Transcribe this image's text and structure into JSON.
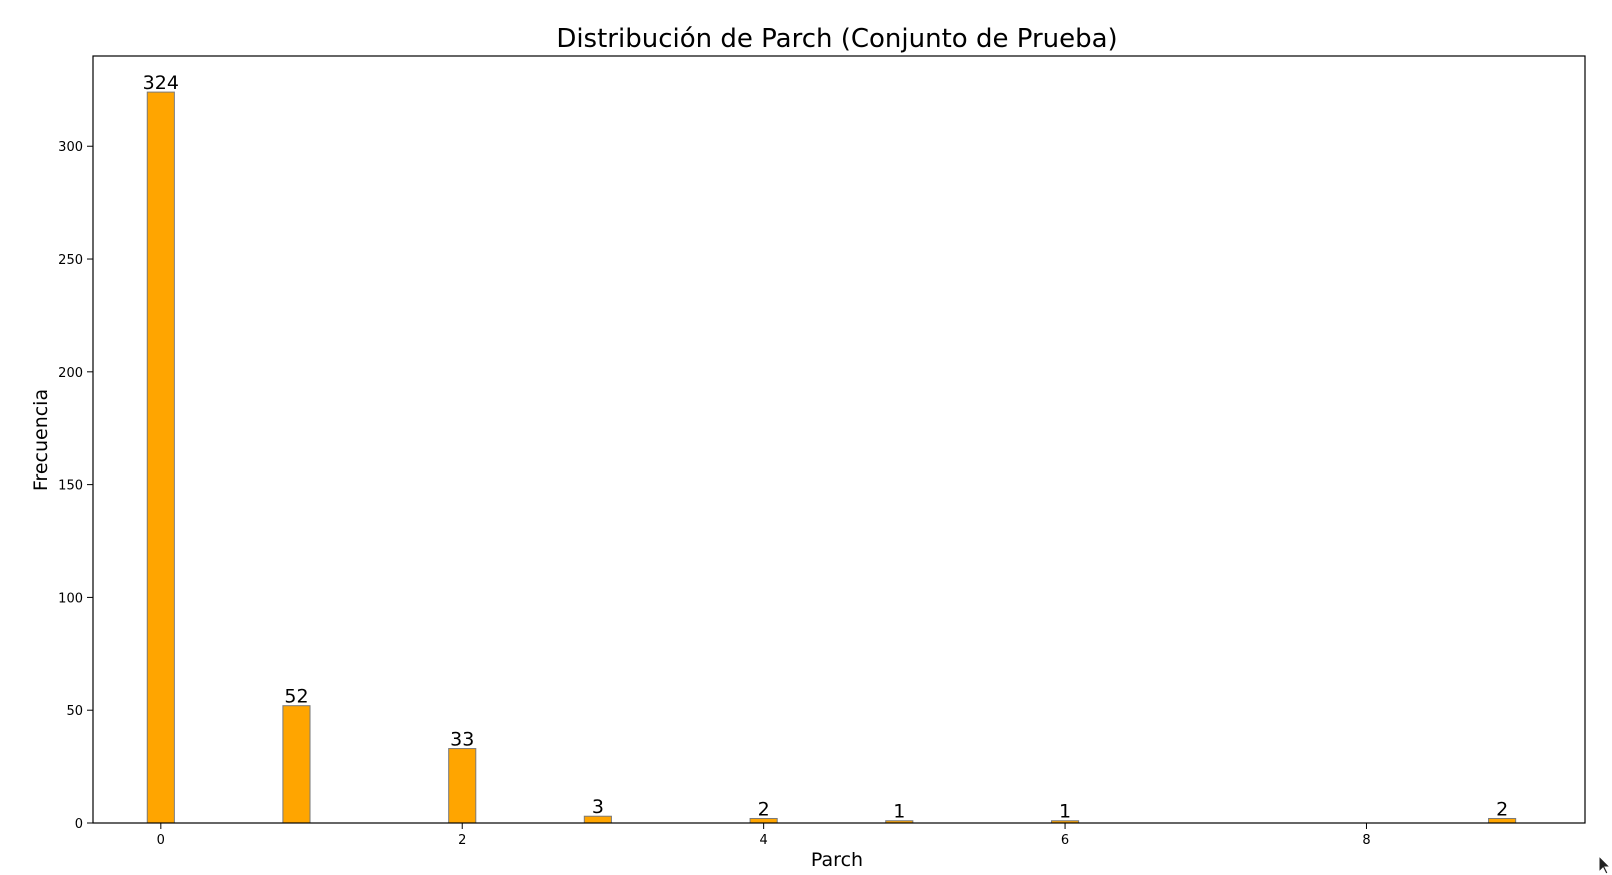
{
  "chart_data": {
    "type": "bar",
    "title": "Distribución de Parch (Conjunto de Prueba)",
    "xlabel": "Parch",
    "ylabel": "Frecuencia",
    "x": [
      0,
      0.9,
      2,
      2.9,
      4,
      4.9,
      6,
      8.9
    ],
    "values": [
      324,
      52,
      33,
      3,
      2,
      1,
      1,
      2
    ],
    "data_labels": [
      "324",
      "52",
      "33",
      "3",
      "2",
      "1",
      "1",
      "2"
    ],
    "bar_width": 0.18,
    "xlim": [
      -0.45,
      9.45
    ],
    "ylim": [
      0,
      340
    ],
    "xticks": [
      0,
      2,
      4,
      6,
      8
    ],
    "xtick_labels": [
      "0",
      "2",
      "4",
      "6",
      "8"
    ],
    "yticks": [
      0,
      50,
      100,
      150,
      200,
      250,
      300
    ],
    "ytick_labels": [
      "0",
      "50",
      "100",
      "150",
      "200",
      "250",
      "300"
    ],
    "grid": false,
    "bar_color": "#FFA500",
    "edge_color": "#7a7a7a"
  }
}
